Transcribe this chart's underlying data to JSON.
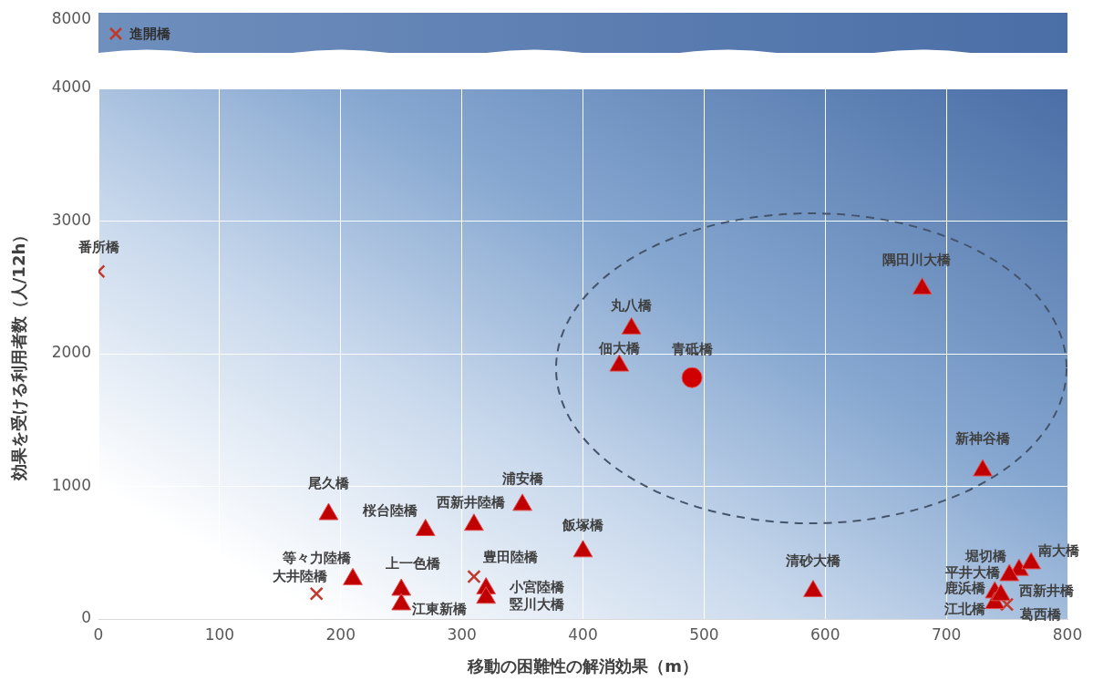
{
  "chart_data": {
    "type": "scatter",
    "xlabel": "移動の困難性の解消効果（m）",
    "ylabel": "効果を受ける利用者数（人/12h）",
    "xlim": [
      0,
      800
    ],
    "xticks": [
      0,
      100,
      200,
      300,
      400,
      500,
      600,
      700,
      800
    ],
    "ylim": [
      0,
      4000
    ],
    "yticks": [
      0,
      1000,
      2000,
      3000,
      4000
    ],
    "grid": true,
    "legend": false,
    "series": [
      {
        "marker": "triangle",
        "color": "#c00000",
        "x": [
          190,
          270,
          310,
          350,
          400,
          210,
          250,
          250,
          320,
          320,
          440,
          430,
          680,
          730,
          590,
          760,
          752,
          770,
          740,
          740,
          745
        ],
        "values": [
          790,
          670,
          710,
          860,
          510,
          300,
          220,
          110,
          230,
          160,
          2190,
          1910,
          2490,
          1120,
          210,
          370,
          330,
          420,
          200,
          120,
          180
        ]
      },
      {
        "marker": "cross",
        "color": "#c0392b",
        "x": [
          0,
          180,
          310,
          750
        ],
        "values": [
          2620,
          190,
          320,
          110
        ]
      },
      {
        "marker": "circle",
        "color": "#d00000",
        "x": [
          490
        ],
        "values": [
          1820
        ]
      }
    ],
    "annotations": [
      {
        "text": "尾久橋",
        "x": 190,
        "y": 790
      },
      {
        "text": "桜台陸橋",
        "x": 270,
        "y": 670
      },
      {
        "text": "西新井陸橋",
        "x": 310,
        "y": 710
      },
      {
        "text": "浦安橋",
        "x": 350,
        "y": 860
      },
      {
        "text": "飯塚橋",
        "x": 400,
        "y": 510
      },
      {
        "text": "等々力陸橋",
        "x": 210,
        "y": 300
      },
      {
        "text": "上一色橋",
        "x": 250,
        "y": 220
      },
      {
        "text": "江東新橋",
        "x": 250,
        "y": 110
      },
      {
        "text": "小宮陸橋",
        "x": 320,
        "y": 230
      },
      {
        "text": "竪川大橋",
        "x": 320,
        "y": 160
      },
      {
        "text": "丸八橋",
        "x": 440,
        "y": 2190
      },
      {
        "text": "佃大橋",
        "x": 430,
        "y": 1910
      },
      {
        "text": "隅田川大橋",
        "x": 680,
        "y": 2490
      },
      {
        "text": "新神谷橋",
        "x": 730,
        "y": 1120
      },
      {
        "text": "清砂大橋",
        "x": 590,
        "y": 210
      },
      {
        "text": "堀切橋",
        "x": 760,
        "y": 370
      },
      {
        "text": "平井大橋",
        "x": 752,
        "y": 330
      },
      {
        "text": "南大橋",
        "x": 770,
        "y": 420
      },
      {
        "text": "鹿浜橋",
        "x": 740,
        "y": 200
      },
      {
        "text": "江北橋",
        "x": 740,
        "y": 120
      },
      {
        "text": "西新井橋",
        "x": 745,
        "y": 180
      },
      {
        "text": "番所橋",
        "x": 0,
        "y": 2620
      },
      {
        "text": "大井陸橋",
        "x": 180,
        "y": 190
      },
      {
        "text": "豊田陸橋",
        "x": 310,
        "y": 320
      },
      {
        "text": "葛西橋",
        "x": 750,
        "y": 110
      },
      {
        "text": "青砥橋",
        "x": 490,
        "y": 1820
      },
      "8000",
      "進開橋"
    ]
  }
}
